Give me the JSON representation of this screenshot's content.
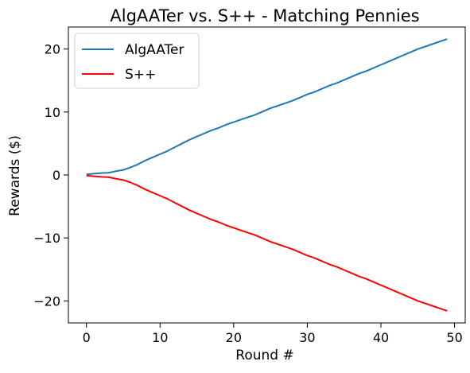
{
  "chart_data": {
    "type": "line",
    "title": "AlgAATer vs. S++ - Matching Pennies",
    "xlabel": "Round #",
    "ylabel": "Rewards ($)",
    "xlim": [
      -2.45,
      51.45
    ],
    "ylim": [
      -23.5,
      23.5
    ],
    "xticks": [
      0,
      10,
      20,
      30,
      40,
      50
    ],
    "yticks": [
      -20,
      -10,
      0,
      10,
      20
    ],
    "grid": false,
    "legend_position": "top-left",
    "x": [
      0,
      1,
      2,
      3,
      4,
      5,
      6,
      7,
      8,
      9,
      10,
      11,
      12,
      13,
      14,
      15,
      16,
      17,
      18,
      19,
      20,
      21,
      22,
      23,
      24,
      25,
      26,
      27,
      28,
      29,
      30,
      31,
      32,
      33,
      34,
      35,
      36,
      37,
      38,
      39,
      40,
      41,
      42,
      43,
      44,
      45,
      46,
      47,
      48,
      49
    ],
    "series": [
      {
        "name": "AlgAATer",
        "color": "#1f77b4",
        "values": [
          0.1,
          0.2,
          0.3,
          0.35,
          0.6,
          0.8,
          1.2,
          1.7,
          2.3,
          2.8,
          3.3,
          3.8,
          4.4,
          5.0,
          5.6,
          6.1,
          6.6,
          7.1,
          7.5,
          8.0,
          8.4,
          8.8,
          9.2,
          9.6,
          10.1,
          10.6,
          11.0,
          11.4,
          11.8,
          12.3,
          12.8,
          13.2,
          13.7,
          14.2,
          14.6,
          15.1,
          15.6,
          16.1,
          16.5,
          17.0,
          17.5,
          18.0,
          18.5,
          19.0,
          19.5,
          20.0,
          20.4,
          20.8,
          21.2,
          21.6
        ]
      },
      {
        "name": "S++",
        "color": "#ff0000",
        "values": [
          -0.1,
          -0.2,
          -0.3,
          -0.35,
          -0.6,
          -0.8,
          -1.2,
          -1.7,
          -2.3,
          -2.8,
          -3.3,
          -3.8,
          -4.4,
          -5.0,
          -5.6,
          -6.1,
          -6.6,
          -7.1,
          -7.5,
          -8.0,
          -8.4,
          -8.8,
          -9.2,
          -9.6,
          -10.1,
          -10.6,
          -11.0,
          -11.4,
          -11.8,
          -12.3,
          -12.8,
          -13.2,
          -13.7,
          -14.2,
          -14.6,
          -15.1,
          -15.6,
          -16.1,
          -16.5,
          -17.0,
          -17.5,
          -18.0,
          -18.5,
          -19.0,
          -19.5,
          -20.0,
          -20.4,
          -20.8,
          -21.2,
          -21.6
        ]
      }
    ]
  }
}
